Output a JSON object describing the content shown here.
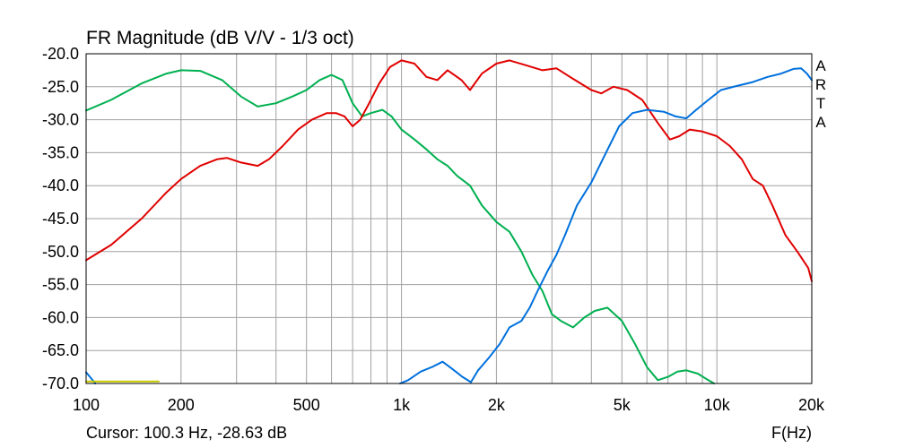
{
  "chart_data": {
    "type": "line",
    "title": "FR Magnitude (dB V/V - 1/3 oct)",
    "xlabel": "F(Hz)",
    "ylabel": "",
    "x_scale": "log",
    "xlim": [
      100,
      20000
    ],
    "ylim": [
      -70,
      -20
    ],
    "grid": true,
    "x_ticks": [
      {
        "value": 100,
        "label": "100"
      },
      {
        "value": 200,
        "label": "200"
      },
      {
        "value": 500,
        "label": "500"
      },
      {
        "value": 1000,
        "label": "1k"
      },
      {
        "value": 2000,
        "label": "2k"
      },
      {
        "value": 5000,
        "label": "5k"
      },
      {
        "value": 10000,
        "label": "10k"
      },
      {
        "value": 20000,
        "label": "20k"
      }
    ],
    "y_ticks": [
      {
        "value": -20,
        "label": "-20.0"
      },
      {
        "value": -25,
        "label": "-25.0"
      },
      {
        "value": -30,
        "label": "-30.0"
      },
      {
        "value": -35,
        "label": "-35.0"
      },
      {
        "value": -40,
        "label": "-40.0"
      },
      {
        "value": -45,
        "label": "-45.0"
      },
      {
        "value": -50,
        "label": "-50.0"
      },
      {
        "value": -55,
        "label": "-55.0"
      },
      {
        "value": -60,
        "label": "-60.0"
      },
      {
        "value": -65,
        "label": "-65.0"
      },
      {
        "value": -70,
        "label": "-70.0"
      }
    ],
    "series": [
      {
        "color": "#00b050",
        "points": [
          [
            100,
            -28.6
          ],
          [
            120,
            -27.0
          ],
          [
            150,
            -24.5
          ],
          [
            180,
            -23.0
          ],
          [
            200,
            -22.5
          ],
          [
            230,
            -22.6
          ],
          [
            270,
            -24.0
          ],
          [
            310,
            -26.5
          ],
          [
            350,
            -28.0
          ],
          [
            400,
            -27.5
          ],
          [
            450,
            -26.5
          ],
          [
            500,
            -25.5
          ],
          [
            550,
            -24.0
          ],
          [
            600,
            -23.2
          ],
          [
            650,
            -24.0
          ],
          [
            700,
            -27.5
          ],
          [
            750,
            -29.5
          ],
          [
            800,
            -29.0
          ],
          [
            870,
            -28.5
          ],
          [
            930,
            -29.5
          ],
          [
            1000,
            -31.5
          ],
          [
            1100,
            -33.0
          ],
          [
            1200,
            -34.5
          ],
          [
            1300,
            -36.0
          ],
          [
            1400,
            -37.0
          ],
          [
            1500,
            -38.5
          ],
          [
            1650,
            -40.0
          ],
          [
            1800,
            -43.0
          ],
          [
            2000,
            -45.5
          ],
          [
            2200,
            -47.0
          ],
          [
            2400,
            -50.0
          ],
          [
            2600,
            -53.5
          ],
          [
            2800,
            -56.0
          ],
          [
            3000,
            -59.5
          ],
          [
            3200,
            -60.5
          ],
          [
            3500,
            -61.5
          ],
          [
            3800,
            -60.0
          ],
          [
            4100,
            -59.0
          ],
          [
            4500,
            -58.5
          ],
          [
            5000,
            -60.5
          ],
          [
            5500,
            -64.0
          ],
          [
            6000,
            -67.5
          ],
          [
            6500,
            -69.5
          ],
          [
            7000,
            -69.0
          ],
          [
            7500,
            -68.2
          ],
          [
            8000,
            -68.0
          ],
          [
            8700,
            -68.5
          ],
          [
            9400,
            -69.5
          ],
          [
            9800,
            -70.0
          ]
        ]
      },
      {
        "color": "#e00000",
        "points": [
          [
            100,
            -51.3
          ],
          [
            120,
            -49.0
          ],
          [
            150,
            -45.0
          ],
          [
            180,
            -41.0
          ],
          [
            200,
            -39.0
          ],
          [
            230,
            -37.0
          ],
          [
            260,
            -36.0
          ],
          [
            280,
            -35.8
          ],
          [
            310,
            -36.5
          ],
          [
            350,
            -37.0
          ],
          [
            380,
            -36.0
          ],
          [
            420,
            -34.0
          ],
          [
            470,
            -31.5
          ],
          [
            520,
            -30.0
          ],
          [
            580,
            -29.0
          ],
          [
            620,
            -29.0
          ],
          [
            660,
            -29.5
          ],
          [
            700,
            -31.0
          ],
          [
            740,
            -30.0
          ],
          [
            780,
            -28.0
          ],
          [
            850,
            -24.5
          ],
          [
            920,
            -22.0
          ],
          [
            1000,
            -21.0
          ],
          [
            1100,
            -21.5
          ],
          [
            1200,
            -23.5
          ],
          [
            1300,
            -24.0
          ],
          [
            1400,
            -22.5
          ],
          [
            1550,
            -24.0
          ],
          [
            1650,
            -25.5
          ],
          [
            1800,
            -23.0
          ],
          [
            2000,
            -21.5
          ],
          [
            2200,
            -21.0
          ],
          [
            2500,
            -21.8
          ],
          [
            2800,
            -22.5
          ],
          [
            3100,
            -22.2
          ],
          [
            3500,
            -23.8
          ],
          [
            4000,
            -25.5
          ],
          [
            4300,
            -26.0
          ],
          [
            4700,
            -25.0
          ],
          [
            5200,
            -25.5
          ],
          [
            5800,
            -27.0
          ],
          [
            6500,
            -30.5
          ],
          [
            7100,
            -33.0
          ],
          [
            7600,
            -32.5
          ],
          [
            8200,
            -31.5
          ],
          [
            9000,
            -31.8
          ],
          [
            10000,
            -32.5
          ],
          [
            11000,
            -34.0
          ],
          [
            12000,
            -36.0
          ],
          [
            13000,
            -39.0
          ],
          [
            14000,
            -40.0
          ],
          [
            15000,
            -43.0
          ],
          [
            16500,
            -47.5
          ],
          [
            18000,
            -50.0
          ],
          [
            19500,
            -52.5
          ],
          [
            20000,
            -54.5
          ]
        ]
      },
      {
        "color": "#0070dd",
        "points": [
          [
            100,
            -68.3
          ],
          [
            104,
            -69.3
          ],
          [
            107,
            -70.0
          ],
          null,
          [
            990,
            -70.0
          ],
          [
            1050,
            -69.5
          ],
          [
            1150,
            -68.2
          ],
          [
            1250,
            -67.5
          ],
          [
            1350,
            -66.7
          ],
          [
            1450,
            -67.8
          ],
          [
            1560,
            -69.0
          ],
          [
            1660,
            -69.8
          ],
          [
            1750,
            -68.0
          ],
          [
            1900,
            -66.0
          ],
          [
            2050,
            -64.0
          ],
          [
            2200,
            -61.5
          ],
          [
            2400,
            -60.5
          ],
          [
            2550,
            -58.5
          ],
          [
            2700,
            -56.0
          ],
          [
            2900,
            -53.0
          ],
          [
            3100,
            -50.5
          ],
          [
            3300,
            -47.5
          ],
          [
            3600,
            -43.0
          ],
          [
            4000,
            -39.5
          ],
          [
            4400,
            -35.5
          ],
          [
            4900,
            -31.0
          ],
          [
            5400,
            -29.0
          ],
          [
            6000,
            -28.5
          ],
          [
            6800,
            -28.8
          ],
          [
            7400,
            -29.5
          ],
          [
            8000,
            -29.8
          ],
          [
            8600,
            -28.5
          ],
          [
            9400,
            -27.0
          ],
          [
            10300,
            -25.5
          ],
          [
            11500,
            -24.9
          ],
          [
            13000,
            -24.3
          ],
          [
            14500,
            -23.5
          ],
          [
            16000,
            -23.0
          ],
          [
            17500,
            -22.3
          ],
          [
            18500,
            -22.2
          ],
          [
            19300,
            -23.0
          ],
          [
            20000,
            -24.0
          ]
        ]
      },
      {
        "color": "#c8c800",
        "points": [
          [
            100,
            -69.7
          ],
          [
            170,
            -69.7
          ]
        ]
      }
    ]
  },
  "watermark": [
    "A",
    "R",
    "T",
    "A"
  ],
  "cursor_readout": "Cursor: 100.3 Hz, -28.63 dB"
}
